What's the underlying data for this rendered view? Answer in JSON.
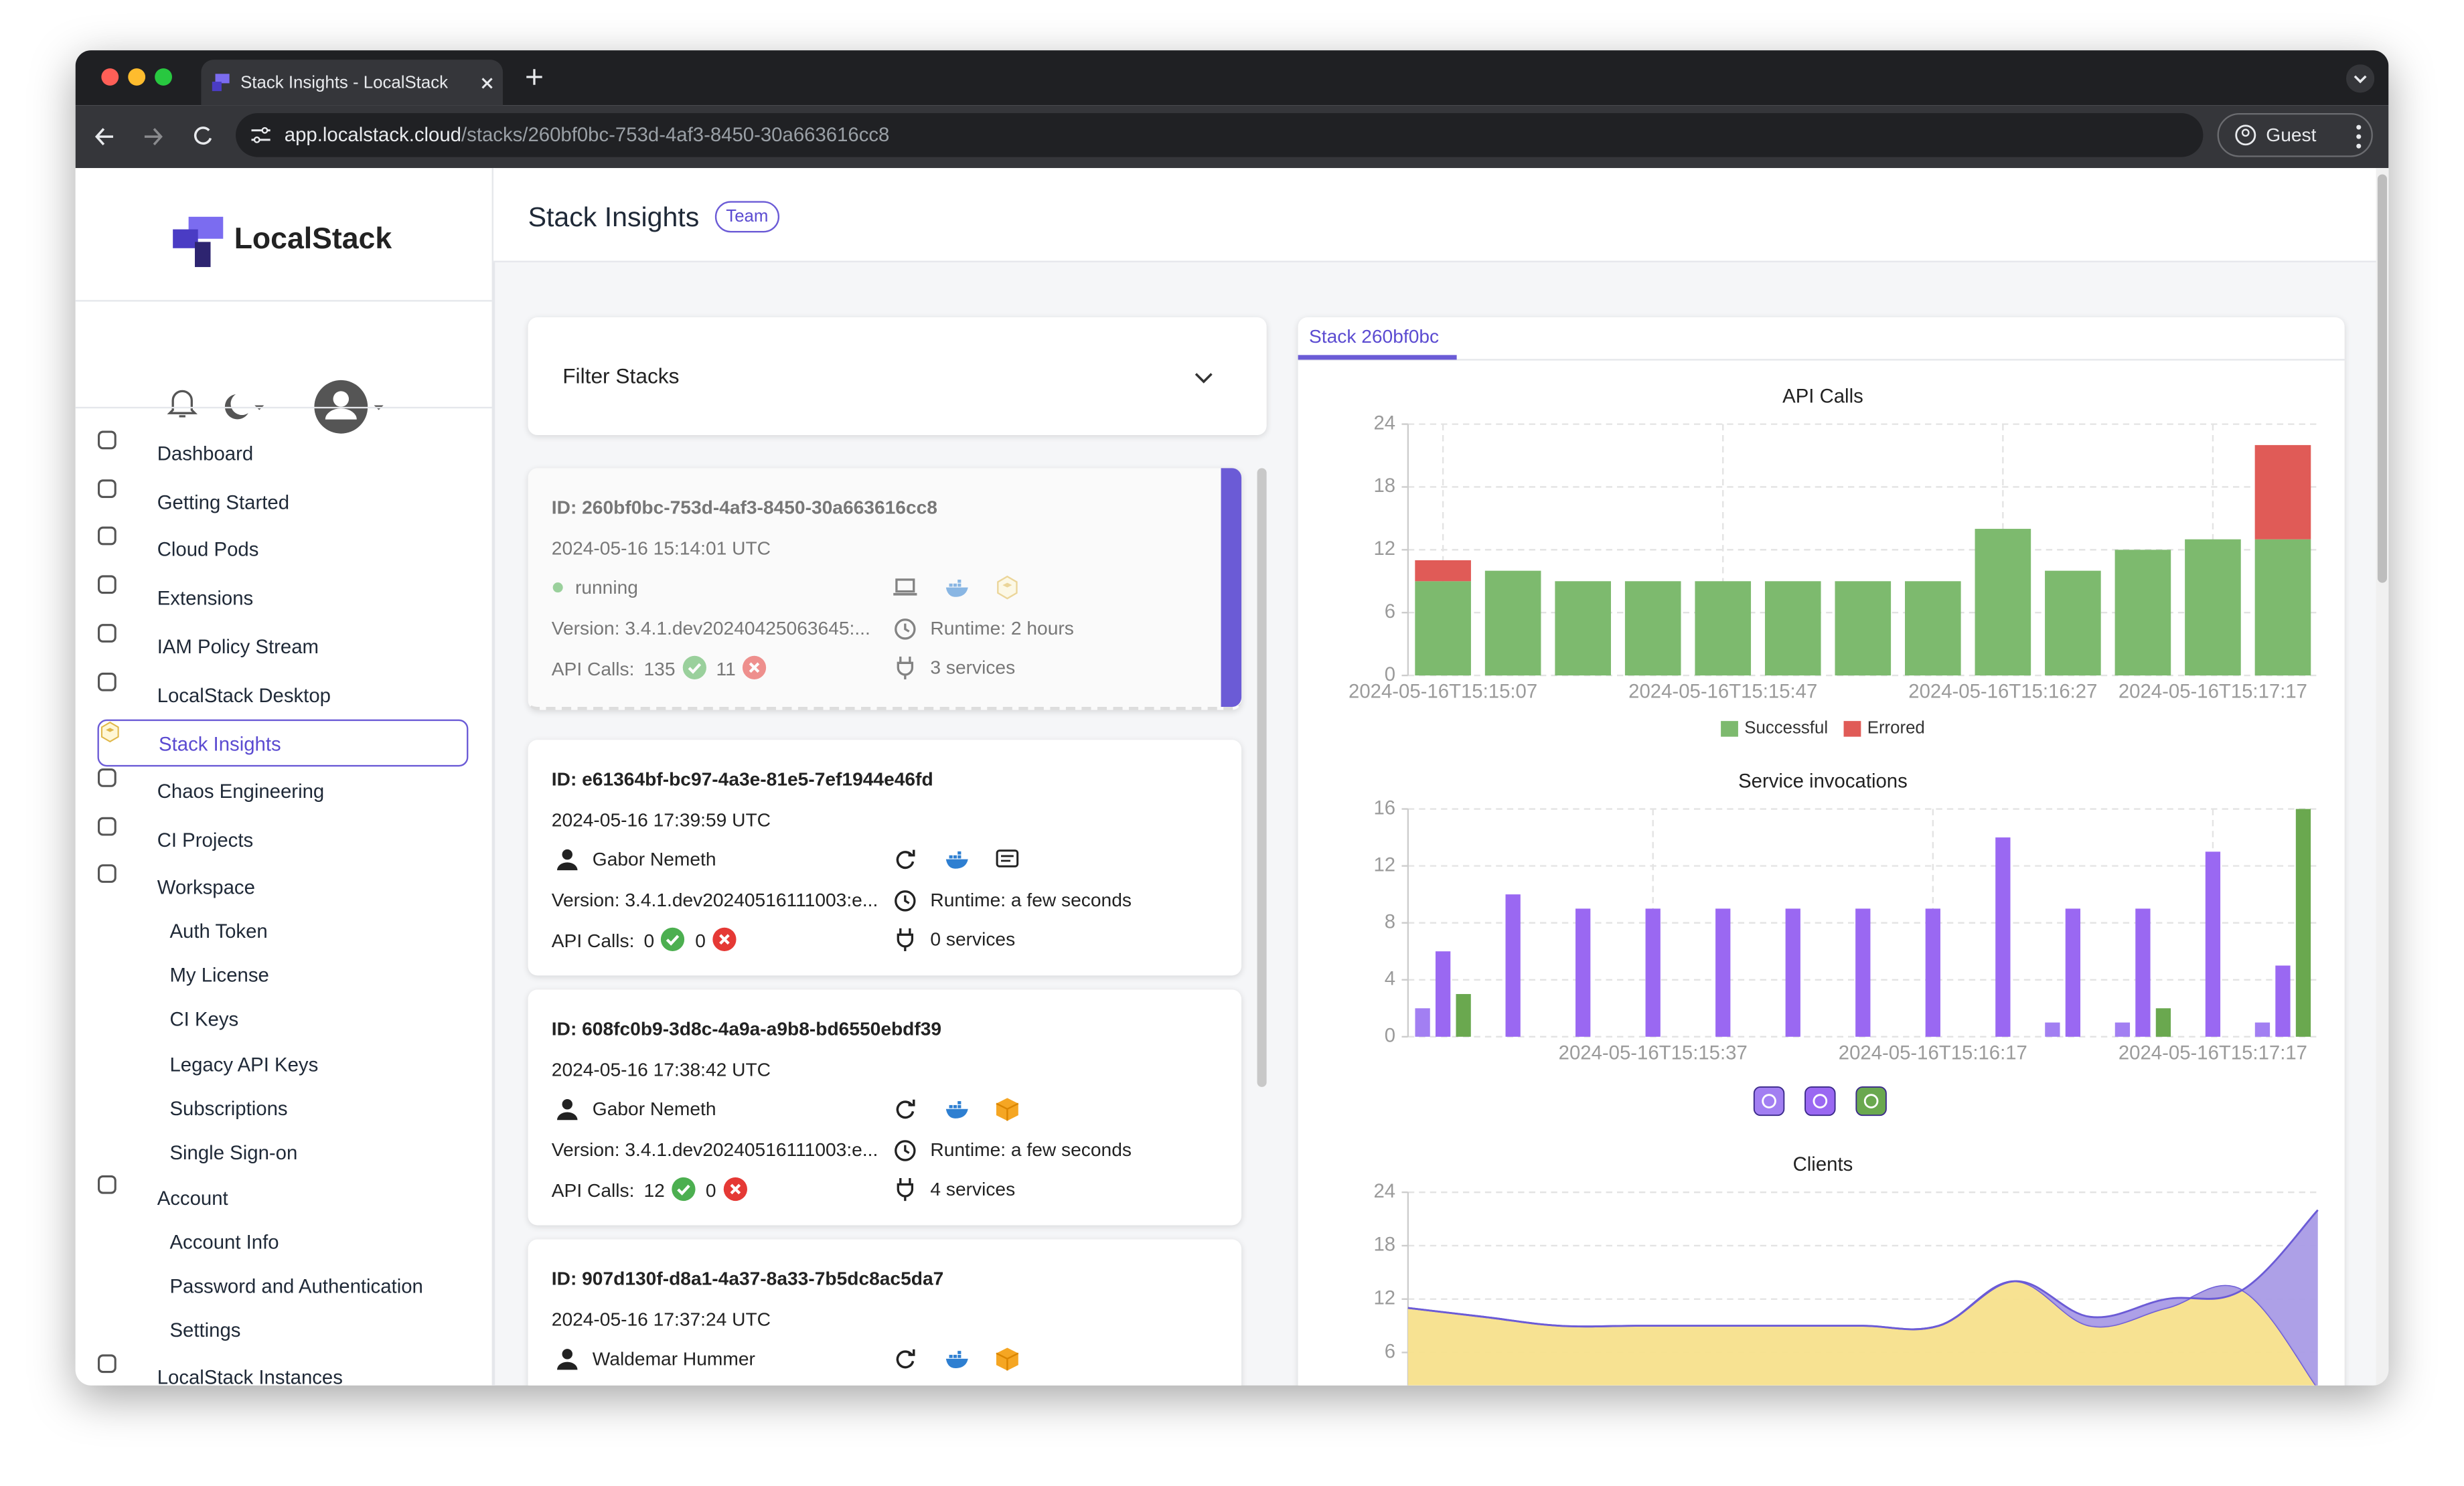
{
  "browser": {
    "tab_title": "Stack Insights - LocalStack",
    "url_host": "app.localstack.cloud",
    "url_path": "/stacks/260bf0bc-753d-4af3-8450-30a663616cc8",
    "profile": "Guest"
  },
  "sidebar": {
    "logo": "LocalStack",
    "nav": [
      {
        "label": "Dashboard"
      },
      {
        "label": "Getting Started"
      },
      {
        "label": "Cloud Pods"
      },
      {
        "label": "Extensions"
      },
      {
        "label": "IAM Policy Stream"
      },
      {
        "label": "LocalStack Desktop"
      },
      {
        "label": "Stack Insights",
        "active": true
      },
      {
        "label": "Chaos Engineering"
      },
      {
        "label": "CI Projects"
      },
      {
        "label": "Workspace",
        "children": [
          "Auth Token",
          "My License",
          "CI Keys",
          "Legacy API Keys",
          "Subscriptions",
          "Single Sign-on"
        ]
      },
      {
        "label": "Account",
        "children": [
          "Account Info",
          "Password and Authentication",
          "Settings"
        ]
      },
      {
        "label": "LocalStack Instances"
      }
    ]
  },
  "header": {
    "title": "Stack Insights",
    "badge": "Team"
  },
  "filter": {
    "label": "Filter Stacks"
  },
  "stacks": [
    {
      "id": "ID: 260bf0bc-753d-4af3-8450-30a663616cc8",
      "date": "2024-05-16 15:14:01 UTC",
      "status": "running",
      "version": "Version: 3.4.1.dev20240425063645:...",
      "runtime": "Runtime: 2 hours",
      "api_label": "API Calls:",
      "successful": 135,
      "errored": 11,
      "services": "3 services",
      "selected": true
    },
    {
      "id": "ID: e61364bf-bc97-4a3e-81e5-7ef1944e46fd",
      "date": "2024-05-16 17:39:59 UTC",
      "user": "Gabor Nemeth",
      "version": "Version: 3.4.1.dev20240516111003:e...",
      "runtime": "Runtime: a few seconds",
      "api_label": "API Calls:",
      "successful": 0,
      "errored": 0,
      "services": "0 services"
    },
    {
      "id": "ID: 608fc0b9-3d8c-4a9a-a9b8-bd6550ebdf39",
      "date": "2024-05-16 17:38:42 UTC",
      "user": "Gabor Nemeth",
      "version": "Version: 3.4.1.dev20240516111003:e...",
      "runtime": "Runtime: a few seconds",
      "api_label": "API Calls:",
      "successful": 12,
      "errored": 0,
      "services": "4 services"
    },
    {
      "id": "ID: 907d130f-d8a1-4a37-8a33-7b5dc8ac5da7",
      "date": "2024-05-16 17:37:24 UTC",
      "user": "Waldemar Hummer"
    }
  ],
  "tab": "Stack 260bf0bc",
  "chart_data": [
    {
      "type": "bar",
      "title": "API Calls",
      "stacked": true,
      "grid": true,
      "legend": "bottom",
      "categories": [
        "2024-05-16T15:15:07",
        null,
        null,
        null,
        "2024-05-16T15:15:47",
        null,
        null,
        null,
        "2024-05-16T15:16:27",
        null,
        null,
        "2024-05-16T15:17:17",
        null
      ],
      "series": [
        {
          "name": "Successful",
          "color": "#7dba6e",
          "values": [
            9,
            10,
            9,
            9,
            9,
            9,
            9,
            9,
            14,
            10,
            12,
            13,
            13
          ]
        },
        {
          "name": "Errored",
          "color": "#e05b57",
          "values": [
            2,
            0,
            0,
            0,
            0,
            0,
            0,
            0,
            0,
            0,
            0,
            0,
            9
          ]
        }
      ],
      "ylim": [
        0,
        24
      ],
      "yticks": [
        0,
        6,
        12,
        18,
        24
      ]
    },
    {
      "type": "bar",
      "title": "Service invocations",
      "stacked": false,
      "grid": true,
      "legend": "bottom",
      "categories": [
        null,
        null,
        null,
        "2024-05-16T15:15:37",
        null,
        null,
        null,
        "2024-05-16T15:16:17",
        null,
        null,
        null,
        "2024-05-16T15:17:17",
        null
      ],
      "series": [
        {
          "color": "#a27ff2",
          "values": [
            2,
            0,
            0,
            0,
            0,
            0,
            0,
            0,
            0,
            1,
            1,
            0,
            1
          ]
        },
        {
          "color": "#9a68f2",
          "values": [
            6,
            10,
            9,
            9,
            9,
            9,
            9,
            9,
            14,
            9,
            9,
            13,
            5
          ]
        },
        {
          "color": "#6aa84f",
          "values": [
            3,
            0,
            0,
            0,
            0,
            0,
            0,
            0,
            0,
            0,
            2,
            0,
            16
          ]
        }
      ],
      "ylim": [
        0,
        16
      ],
      "yticks": [
        0,
        4,
        8,
        12,
        16
      ]
    },
    {
      "type": "area",
      "title": "Clients",
      "stacked": true,
      "grid": true,
      "series": [
        {
          "color": "#f7e08c",
          "values": [
            11,
            10,
            9,
            9,
            9,
            9,
            9,
            9,
            14,
            9,
            11,
            13,
            2
          ]
        },
        {
          "color": "#a99be6",
          "values": [
            0,
            0,
            0,
            0,
            0,
            0,
            0,
            0,
            0,
            1,
            1,
            0,
            20
          ]
        }
      ],
      "ylim": [
        0,
        24
      ],
      "yticks": [
        6,
        12,
        18,
        24
      ]
    }
  ]
}
